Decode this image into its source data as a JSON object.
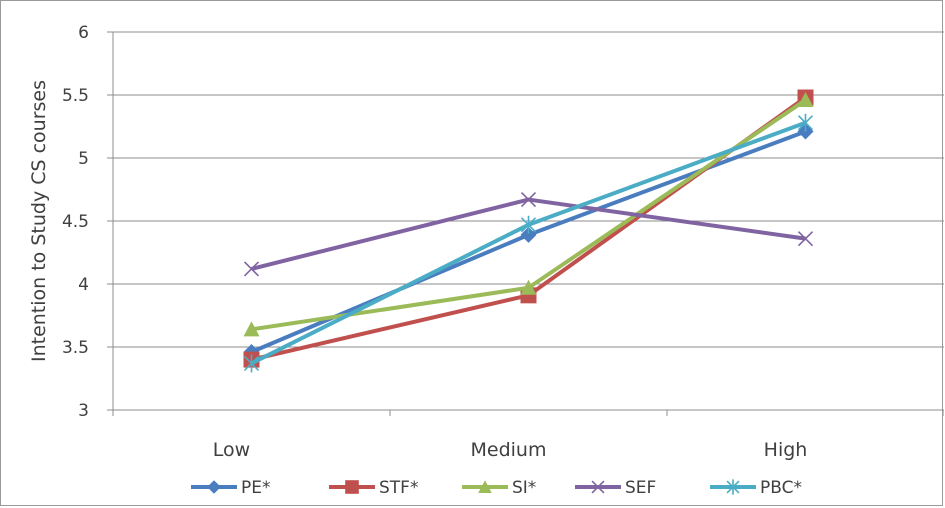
{
  "chart_data": {
    "type": "line",
    "categories": [
      "Low",
      "Medium",
      "High"
    ],
    "ylabel": "Intention to Study CS courses",
    "xlabel": "",
    "ylim": [
      3,
      6
    ],
    "yticks": [
      "3",
      "3.5",
      "4",
      "4.5",
      "5",
      "5.5",
      "6"
    ],
    "grid": "horizontal",
    "legend_position": "bottom",
    "series": [
      {
        "name": "PE*",
        "values": [
          3.46,
          4.39,
          5.21
        ],
        "color": "#4a7dbf",
        "marker": "diamond"
      },
      {
        "name": "STF*",
        "values": [
          3.4,
          3.91,
          5.48
        ],
        "color": "#c0504d",
        "marker": "square"
      },
      {
        "name": "SI*",
        "values": [
          3.64,
          3.97,
          5.46
        ],
        "color": "#9bbb59",
        "marker": "triangle"
      },
      {
        "name": "SEF",
        "values": [
          4.12,
          4.67,
          4.36
        ],
        "color": "#8064a2",
        "marker": "x"
      },
      {
        "name": "PBC*",
        "values": [
          3.37,
          4.47,
          5.28
        ],
        "color": "#4bacc6",
        "marker": "asterisk"
      }
    ]
  }
}
